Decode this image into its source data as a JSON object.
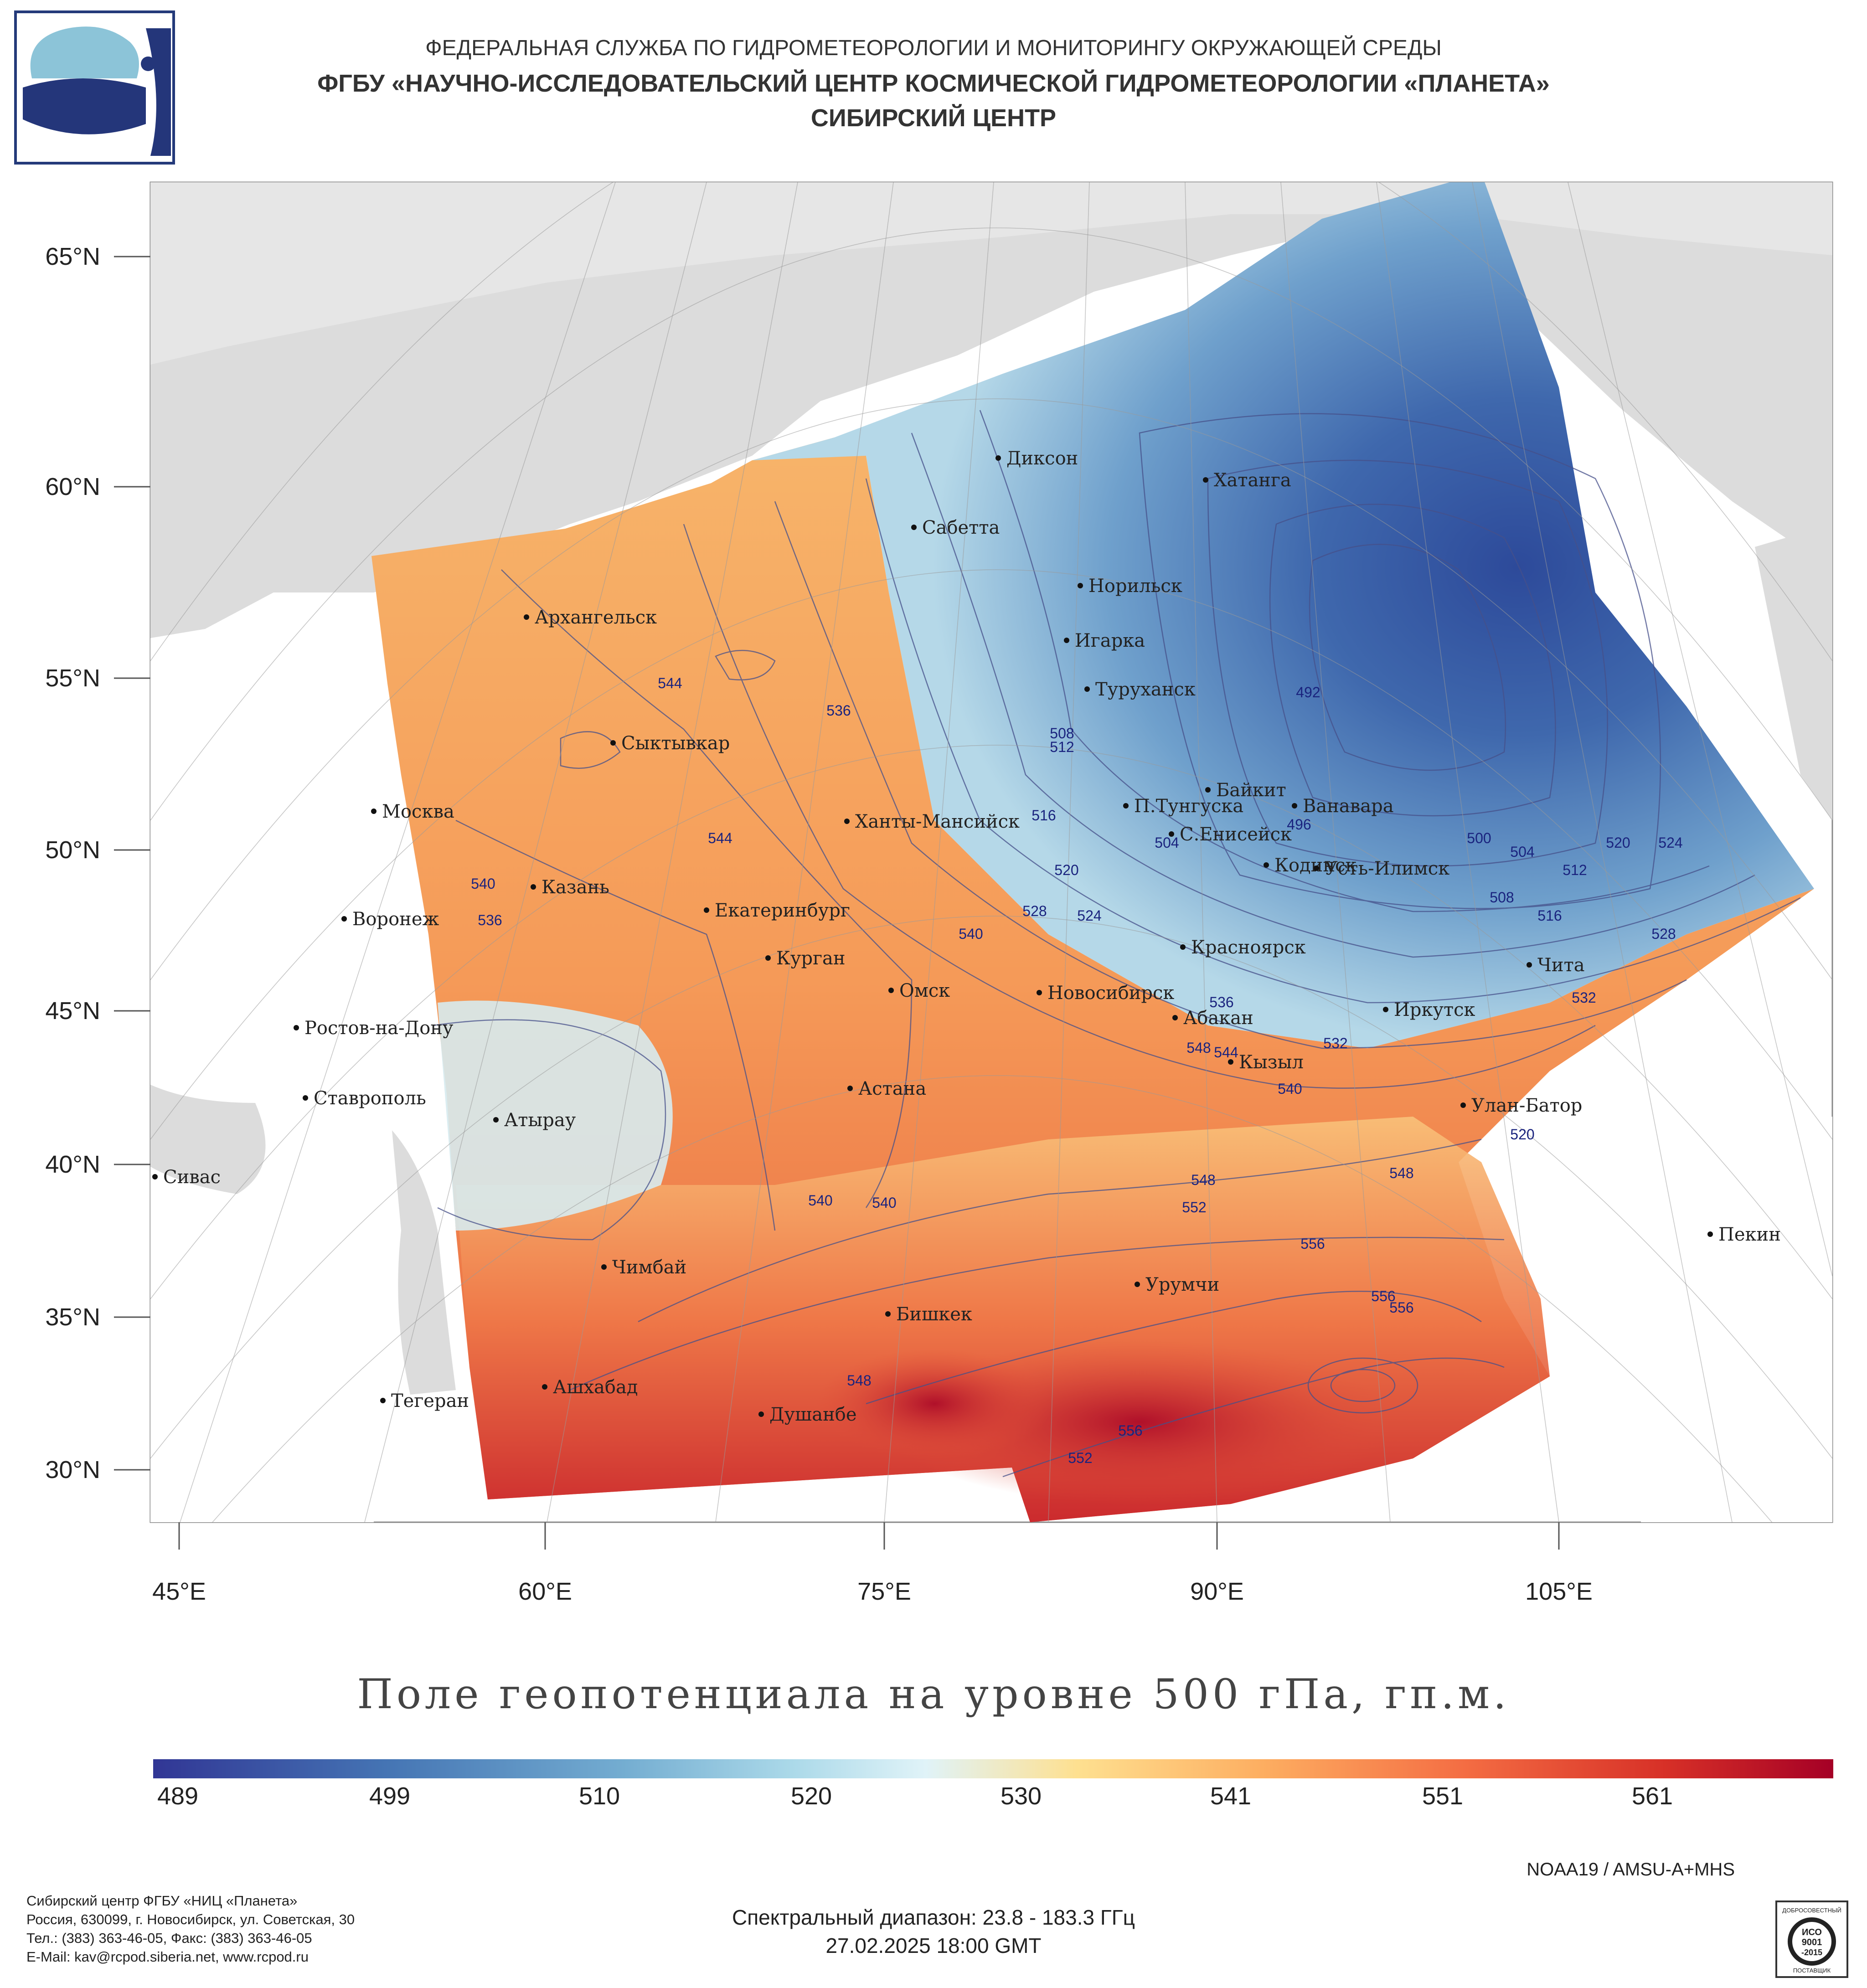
{
  "header": {
    "line1": "ФЕДЕРАЛЬНАЯ СЛУЖБА ПО ГИДРОМЕТЕОРОЛОГИИ И МОНИТОРИНГУ ОКРУЖАЮЩЕЙ СРЕДЫ",
    "line2": "ФГБУ «НАУЧНО-ИССЛЕДОВАТЕЛЬСКИЙ ЦЕНТР КОСМИЧЕСКОЙ ГИДРОМЕТЕОРОЛОГИИ «ПЛАНЕТА»",
    "line3": "СИБИРСКИЙ ЦЕНТР"
  },
  "map": {
    "lat_labels": [
      "65°N",
      "60°N",
      "55°N",
      "50°N",
      "45°N",
      "40°N",
      "35°N",
      "30°N"
    ],
    "lon_labels": [
      "45°E",
      "60°E",
      "75°E",
      "90°E",
      "105°E"
    ],
    "cities": [
      "Диксон",
      "Хатанга",
      "Сабетта",
      "Норильск",
      "Архангельск",
      "Игарка",
      "Туруханск",
      "Сыктывкар",
      "Байкит",
      "Москва",
      "П.Тунгуска",
      "Ванавара",
      "Ханты-Мансийск",
      "С.Енисейск",
      "Кодинск",
      "Усть-Илимск",
      "Казань",
      "Воронеж",
      "Екатеринбург",
      "Красноярск",
      "Курган",
      "Чита",
      "Омск",
      "Новосибирск",
      "Иркутск",
      "Ростов-на-Дону",
      "Абакан",
      "Кызыл",
      "Ставрополь",
      "Астана",
      "Улан-Батор",
      "Атырау",
      "Сивас",
      "Пекин",
      "Чимбай",
      "Урумчи",
      "Бишкек",
      "Ашхабад",
      "Тегеран",
      "Душанбе"
    ],
    "contour_labels": [
      "492",
      "496",
      "500",
      "504",
      "508",
      "512",
      "516",
      "520",
      "524",
      "528",
      "532",
      "536",
      "540",
      "544",
      "548",
      "552",
      "556"
    ],
    "colors": {
      "low": "#313695",
      "mid": "#f7f4d8",
      "high": "#a50026",
      "land": "#dcdcdc",
      "sea": "#ffffff"
    }
  },
  "map_title": "Поле геопотенциала на уровне 500 гПа, гп.м.",
  "colorbar": {
    "ticks": [
      "489",
      "499",
      "510",
      "520",
      "530",
      "541",
      "551",
      "561"
    ],
    "min": 489,
    "max": 569
  },
  "satellite": "NOAA19 / AMSU-A+MHS",
  "spectral": "Спектральный диапазон: 23.8 - 183.3 ГГц",
  "datetime": "27.02.2025 18:00 GMT",
  "footer": {
    "line1": "Сибирский центр ФГБУ «НИЦ «Планета»",
    "line2": "Россия, 630099, г. Новосибирск, ул. Советская, 30",
    "line3": "Тел.: (383) 363-46-05, Факс: (383) 363-46-05",
    "line4": "E-Mail: kav@rcpod.siberia.net, www.rcpod.ru"
  },
  "iso_badge": {
    "top": "ДОБРОСОВЕСТНЫЙ",
    "l1": "ИСО",
    "l2": "9001",
    "l3": "-2015",
    "bottom": "ПОСТАВЩИК"
  }
}
